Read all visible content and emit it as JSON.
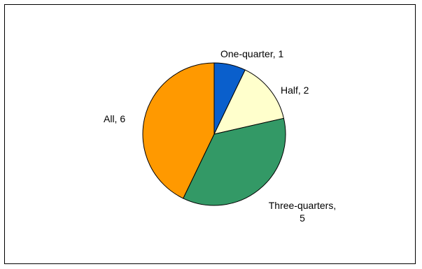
{
  "chart_data": {
    "type": "pie",
    "title": "",
    "categories": [
      "One-quarter",
      "Half",
      "Three-quarters",
      "All"
    ],
    "values": [
      1,
      2,
      5,
      6
    ],
    "data_labels": [
      [
        "One-quarter, 1"
      ],
      [
        "Half, 2"
      ],
      [
        "Three-quarters,",
        "5"
      ],
      [
        "All, 6"
      ]
    ],
    "colors": [
      "#0a5fcc",
      "#ffffcc",
      "#339966",
      "#ff9900"
    ],
    "start_angle_deg": 0,
    "direction": "clockwise",
    "legend": "none"
  }
}
